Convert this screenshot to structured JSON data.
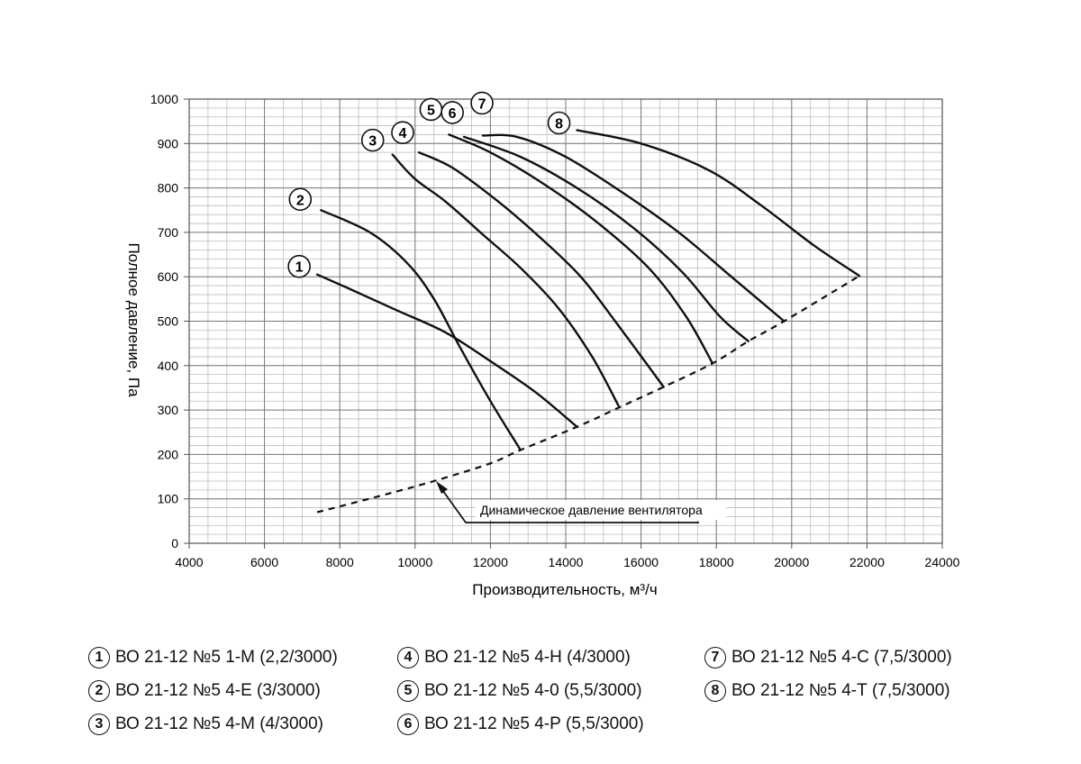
{
  "chart_data": {
    "type": "line",
    "xlabel": "Производительность, м³/ч",
    "ylabel": "Полное давление, Па",
    "xlim": [
      4000,
      24000
    ],
    "ylim": [
      0,
      1000
    ],
    "xticks": [
      "4000",
      "6000",
      "8000",
      "10000",
      "12000",
      "14000",
      "16000",
      "18000",
      "20000",
      "22000",
      "24000"
    ],
    "yticks": [
      "0",
      "100",
      "200",
      "300",
      "400",
      "500",
      "600",
      "700",
      "800",
      "900",
      "1000"
    ],
    "grid": true,
    "series": [
      {
        "id": "1",
        "points": [
          [
            7400,
            605
          ],
          [
            8200,
            575
          ],
          [
            9500,
            525
          ],
          [
            10800,
            475
          ],
          [
            12000,
            410
          ],
          [
            13200,
            340
          ],
          [
            14300,
            262
          ]
        ]
      },
      {
        "id": "2",
        "points": [
          [
            7500,
            750
          ],
          [
            8800,
            700
          ],
          [
            9800,
            630
          ],
          [
            10500,
            550
          ],
          [
            11200,
            440
          ],
          [
            12000,
            320
          ],
          [
            12800,
            210
          ]
        ]
      },
      {
        "id": "3",
        "points": [
          [
            9400,
            875
          ],
          [
            10000,
            820
          ],
          [
            10800,
            770
          ],
          [
            11800,
            695
          ],
          [
            12800,
            620
          ],
          [
            13800,
            530
          ],
          [
            14700,
            420
          ],
          [
            15400,
            310
          ]
        ]
      },
      {
        "id": "4",
        "points": [
          [
            10100,
            880
          ],
          [
            11000,
            845
          ],
          [
            12200,
            770
          ],
          [
            13300,
            690
          ],
          [
            14400,
            600
          ],
          [
            15400,
            490
          ],
          [
            16600,
            352
          ]
        ]
      },
      {
        "id": "5",
        "points": [
          [
            10900,
            920
          ],
          [
            12000,
            880
          ],
          [
            13400,
            810
          ],
          [
            14800,
            725
          ],
          [
            16200,
            620
          ],
          [
            17200,
            510
          ],
          [
            17900,
            405
          ]
        ]
      },
      {
        "id": "6",
        "points": [
          [
            11300,
            915
          ],
          [
            12800,
            870
          ],
          [
            14300,
            800
          ],
          [
            15800,
            710
          ],
          [
            17100,
            610
          ],
          [
            18100,
            510
          ],
          [
            18850,
            455
          ]
        ]
      },
      {
        "id": "7",
        "points": [
          [
            11800,
            918
          ],
          [
            12700,
            915
          ],
          [
            14000,
            870
          ],
          [
            15500,
            790
          ],
          [
            17000,
            700
          ],
          [
            18400,
            600
          ],
          [
            19800,
            500
          ]
        ]
      },
      {
        "id": "8",
        "points": [
          [
            14300,
            930
          ],
          [
            16000,
            900
          ],
          [
            17800,
            840
          ],
          [
            19200,
            760
          ],
          [
            20600,
            670
          ],
          [
            21800,
            602
          ]
        ]
      }
    ],
    "dynamic_pressure": {
      "label": "Динамическое давление вентилятора",
      "points": [
        [
          7400,
          70
        ],
        [
          9000,
          105
        ],
        [
          10500,
          140
        ],
        [
          12000,
          180
        ],
        [
          12800,
          210
        ],
        [
          14300,
          262
        ],
        [
          15400,
          305
        ],
        [
          16600,
          352
        ],
        [
          17900,
          405
        ],
        [
          18850,
          455
        ],
        [
          19800,
          500
        ],
        [
          21800,
          602
        ]
      ]
    },
    "legend": [
      {
        "num": "1",
        "text": "ВО 21-12 №5 1-М (2,2/3000)"
      },
      {
        "num": "2",
        "text": "ВО 21-12 №5 4-Е (3/3000)"
      },
      {
        "num": "3",
        "text": "ВО 21-12 №5 4-М (4/3000)"
      },
      {
        "num": "4",
        "text": "ВО 21-12 №5 4-Н (4/3000)"
      },
      {
        "num": "5",
        "text": "ВО 21-12 №5 4-0 (5,5/3000)"
      },
      {
        "num": "6",
        "text": "ВО 21-12 №5 4-Р (5,5/3000)"
      },
      {
        "num": "7",
        "text": "ВО 21-12 №5 4-С (7,5/3000)"
      },
      {
        "num": "8",
        "text": "ВО 21-12 №5 4-Т (7,5/3000)"
      }
    ]
  }
}
